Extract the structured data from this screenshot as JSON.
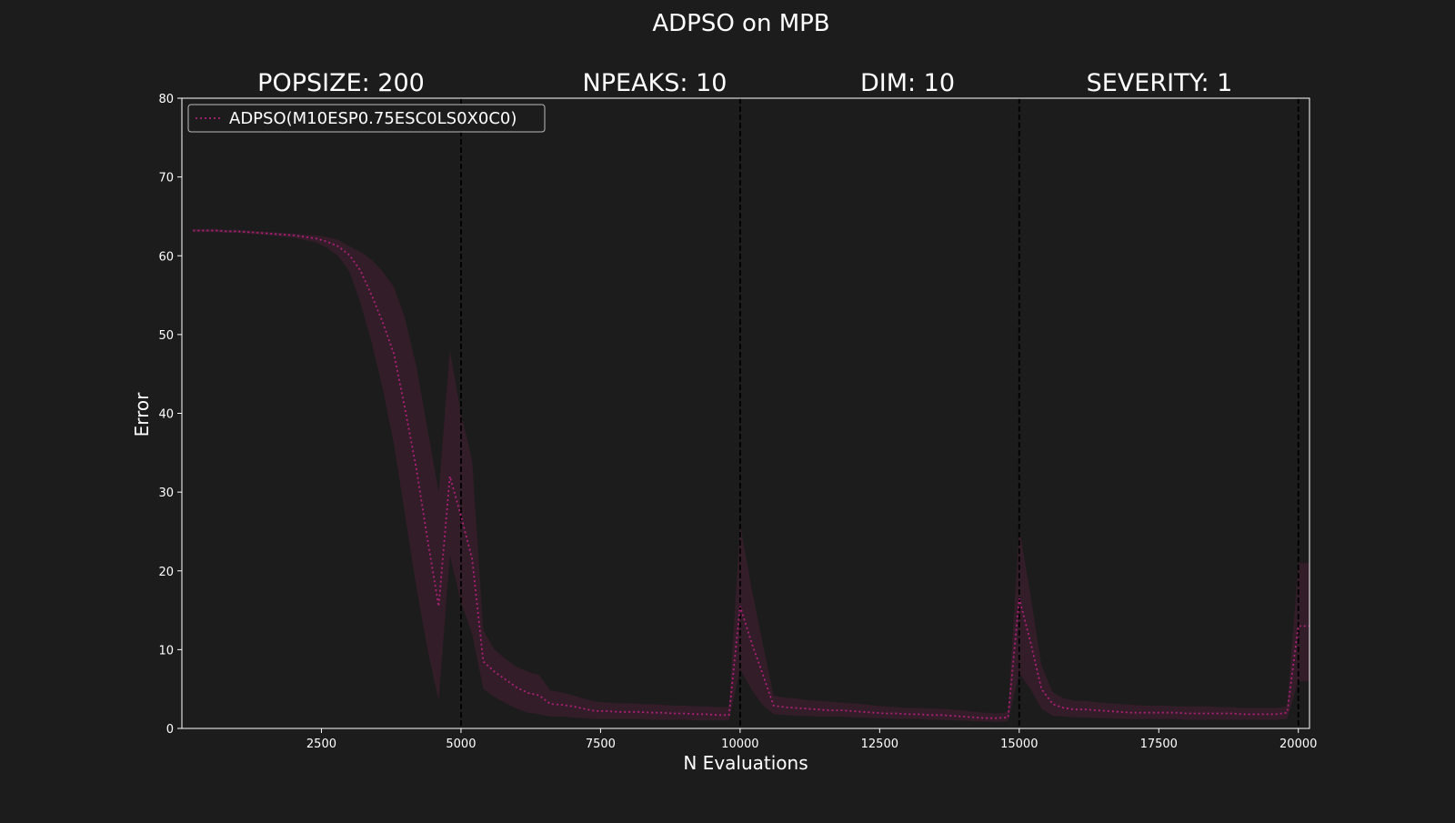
{
  "chart_data": {
    "type": "line",
    "title": "ADPSO on MPB",
    "subtitles": [
      "POPSIZE: 200",
      "NPEAKS: 10",
      "DIM: 10",
      "SEVERITY: 1"
    ],
    "xlabel": "N Evaluations",
    "ylabel": "Error",
    "xlim": [
      0,
      20200
    ],
    "ylim": [
      0,
      80
    ],
    "xticks": [
      2500,
      5000,
      7500,
      10000,
      12500,
      15000,
      17500,
      20000
    ],
    "xtick_labels": [
      "2500",
      "5000",
      "7500",
      "10000",
      "12500",
      "15000",
      "17500",
      "20000"
    ],
    "yticks": [
      0,
      10,
      20,
      30,
      40,
      50,
      60,
      70,
      80
    ],
    "ytick_labels": [
      "0",
      "10",
      "20",
      "30",
      "40",
      "50",
      "60",
      "70",
      "80"
    ],
    "vlines": [
      5000,
      10000,
      15000,
      20000
    ],
    "grid": false,
    "legend_position": "upper-left",
    "colors": {
      "background": "#1c1c1c",
      "axes_frame": "#ffffff",
      "series": "#b0207a",
      "band": "#3a1e2c",
      "vline": "#000000"
    },
    "series": [
      {
        "name": "ADPSO(M10ESP0.75ESC0LS0X0C0)",
        "x": [
          200,
          400,
          600,
          800,
          1000,
          1200,
          1400,
          1600,
          1800,
          2000,
          2200,
          2400,
          2600,
          2800,
          3000,
          3200,
          3400,
          3600,
          3800,
          4000,
          4200,
          4400,
          4600,
          4800,
          5000,
          5200,
          5400,
          5600,
          5800,
          6000,
          6200,
          6400,
          6600,
          6800,
          7000,
          7200,
          7400,
          7600,
          7800,
          8000,
          8200,
          8400,
          8600,
          8800,
          9000,
          9200,
          9400,
          9600,
          9800,
          10000,
          10200,
          10400,
          10600,
          10800,
          11000,
          11200,
          11400,
          11600,
          11800,
          12000,
          12200,
          12400,
          12600,
          12800,
          13000,
          13200,
          13400,
          13600,
          13800,
          14000,
          14200,
          14400,
          14600,
          14800,
          15000,
          15200,
          15400,
          15600,
          15800,
          16000,
          16200,
          16400,
          16600,
          16800,
          17000,
          17200,
          17400,
          17600,
          17800,
          18000,
          18200,
          18400,
          18600,
          18800,
          19000,
          19200,
          19400,
          19600,
          19800,
          20000,
          20200
        ],
        "y": [
          63.2,
          63.2,
          63.2,
          63.1,
          63.1,
          63.0,
          62.9,
          62.8,
          62.7,
          62.6,
          62.4,
          62.2,
          61.8,
          61.2,
          60.1,
          58.1,
          55.0,
          51.5,
          47.5,
          40.5,
          33.0,
          24.0,
          15.5,
          32.0,
          27.0,
          21.5,
          8.5,
          7.2,
          6.2,
          5.2,
          4.5,
          4.2,
          3.1,
          3.0,
          2.8,
          2.5,
          2.2,
          2.2,
          2.1,
          2.1,
          2.1,
          2.0,
          2.0,
          1.9,
          1.9,
          1.8,
          1.8,
          1.7,
          1.7,
          15.5,
          11.0,
          7.0,
          2.9,
          2.7,
          2.6,
          2.5,
          2.4,
          2.3,
          2.3,
          2.2,
          2.1,
          2.0,
          1.9,
          1.9,
          1.8,
          1.8,
          1.7,
          1.7,
          1.6,
          1.5,
          1.4,
          1.3,
          1.3,
          1.4,
          16.5,
          11.0,
          5.0,
          3.1,
          2.6,
          2.4,
          2.4,
          2.3,
          2.2,
          2.1,
          2.0,
          2.0,
          2.0,
          2.0,
          2.0,
          1.9,
          1.9,
          1.9,
          1.9,
          1.9,
          1.8,
          1.8,
          1.8,
          1.8,
          2.0,
          13.0,
          13.0
        ],
        "lower": [
          63.0,
          63.0,
          63.0,
          62.9,
          62.9,
          62.8,
          62.7,
          62.6,
          62.4,
          62.3,
          62.0,
          61.7,
          61.0,
          60.0,
          58.0,
          54.0,
          49.0,
          43.0,
          36.0,
          27.0,
          18.0,
          10.0,
          3.5,
          22.0,
          16.0,
          12.0,
          5.0,
          4.0,
          3.2,
          2.5,
          2.0,
          1.8,
          1.5,
          1.5,
          1.4,
          1.3,
          1.2,
          1.2,
          1.2,
          1.2,
          1.2,
          1.1,
          1.1,
          1.1,
          1.1,
          1.0,
          1.0,
          1.0,
          1.0,
          7.5,
          5.0,
          3.0,
          1.8,
          1.7,
          1.6,
          1.6,
          1.5,
          1.5,
          1.5,
          1.4,
          1.4,
          1.3,
          1.3,
          1.2,
          1.2,
          1.2,
          1.1,
          1.1,
          1.0,
          1.0,
          0.9,
          0.9,
          0.8,
          0.9,
          7.0,
          5.0,
          2.5,
          1.6,
          1.5,
          1.4,
          1.4,
          1.3,
          1.3,
          1.2,
          1.2,
          1.2,
          1.2,
          1.2,
          1.2,
          1.1,
          1.1,
          1.1,
          1.1,
          1.1,
          1.1,
          1.1,
          1.1,
          1.1,
          1.2,
          6.0,
          6.0
        ],
        "upper": [
          63.4,
          63.4,
          63.4,
          63.3,
          63.3,
          63.2,
          63.1,
          63.0,
          62.9,
          62.8,
          62.7,
          62.6,
          62.4,
          62.0,
          61.2,
          60.5,
          59.5,
          58.0,
          56.0,
          52.0,
          46.0,
          38.0,
          30.0,
          48.0,
          40.0,
          34.0,
          12.5,
          10.0,
          8.8,
          7.8,
          7.2,
          6.8,
          4.8,
          4.6,
          4.2,
          3.8,
          3.4,
          3.3,
          3.2,
          3.2,
          3.1,
          3.1,
          3.0,
          2.9,
          2.9,
          2.8,
          2.8,
          2.7,
          2.7,
          26.0,
          18.0,
          11.0,
          4.2,
          3.9,
          3.8,
          3.6,
          3.5,
          3.4,
          3.3,
          3.2,
          3.1,
          2.9,
          2.8,
          2.7,
          2.6,
          2.6,
          2.5,
          2.5,
          2.4,
          2.3,
          2.1,
          2.0,
          1.9,
          2.1,
          25.5,
          17.0,
          8.0,
          4.6,
          3.8,
          3.5,
          3.5,
          3.3,
          3.2,
          3.1,
          3.0,
          2.9,
          2.9,
          2.9,
          2.8,
          2.8,
          2.8,
          2.8,
          2.7,
          2.7,
          2.6,
          2.6,
          2.6,
          2.6,
          2.8,
          21.0,
          21.0
        ]
      }
    ]
  }
}
